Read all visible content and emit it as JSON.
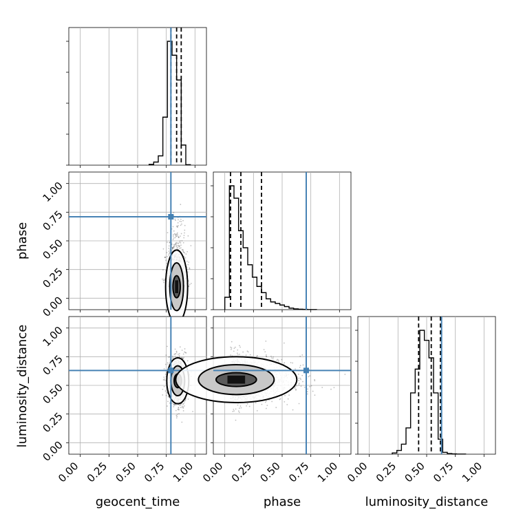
{
  "chart_data": {
    "type": "corner",
    "parameters": [
      "geocent_time",
      "phase",
      "luminosity_distance"
    ],
    "axis_labels": {
      "x": [
        "geocent_time",
        "phase",
        "luminosity_distance"
      ],
      "y": [
        "phase",
        "luminosity_distance"
      ]
    },
    "range": [
      -0.1,
      1.1
    ],
    "ticks": [
      0.0,
      0.25,
      0.5,
      0.75,
      1.0
    ],
    "tick_labels": [
      "0.00",
      "0.25",
      "0.50",
      "0.75",
      "1.00"
    ],
    "truths": {
      "geocent_time": 0.79,
      "phase": 0.71,
      "luminosity_distance": 0.63
    },
    "truth_color": "#4682b4",
    "grid": true,
    "histograms": {
      "geocent_time": {
        "bins": [
          0.6,
          0.64,
          0.68,
          0.72,
          0.76,
          0.8,
          0.84,
          0.88,
          0.92,
          0.96
        ],
        "counts": [
          0.5,
          2,
          6,
          31,
          80,
          71,
          55,
          13,
          0.3
        ],
        "quantiles": [
          0.79,
          0.84,
          0.88
        ]
      },
      "phase": {
        "bins": [
          0.0,
          0.04,
          0.08,
          0.12,
          0.16,
          0.2,
          0.24,
          0.28,
          0.32,
          0.36,
          0.4,
          0.44,
          0.48,
          0.52,
          0.56,
          0.6,
          0.64,
          0.68,
          0.72,
          0.76,
          0.8
        ],
        "counts": [
          8,
          80,
          72,
          51,
          40,
          29,
          21,
          15,
          11,
          7,
          5,
          4,
          3,
          2,
          1,
          0.5,
          0.3,
          0.2,
          0.1,
          0.1
        ],
        "quantiles": [
          0.05,
          0.14,
          0.32
        ]
      },
      "luminosity_distance": {
        "bins": [
          0.2,
          0.24,
          0.28,
          0.32,
          0.36,
          0.4,
          0.44,
          0.48,
          0.52,
          0.56,
          0.6,
          0.64,
          0.68,
          0.72,
          0.76,
          0.8,
          0.84
        ],
        "counts": [
          1,
          3,
          8,
          21,
          49,
          68,
          99,
          91,
          77,
          49,
          12,
          1.5,
          0.5,
          0.2,
          0.1,
          0.1
        ],
        "quantiles": [
          0.43,
          0.54,
          0.62
        ]
      }
    },
    "density_2d": {
      "phase_vs_geocent_time": {
        "x_center": 0.84,
        "y_center": 0.1,
        "x_spread": 0.04,
        "y_spread": 0.16
      },
      "luminosity_distance_vs_geocent_time": {
        "x_center": 0.85,
        "y_center": 0.54,
        "x_spread": 0.04,
        "y_spread": 0.1
      },
      "luminosity_distance_vs_phase": {
        "x_center": 0.1,
        "y_center": 0.55,
        "x_spread": 0.22,
        "y_spread": 0.1
      }
    }
  }
}
